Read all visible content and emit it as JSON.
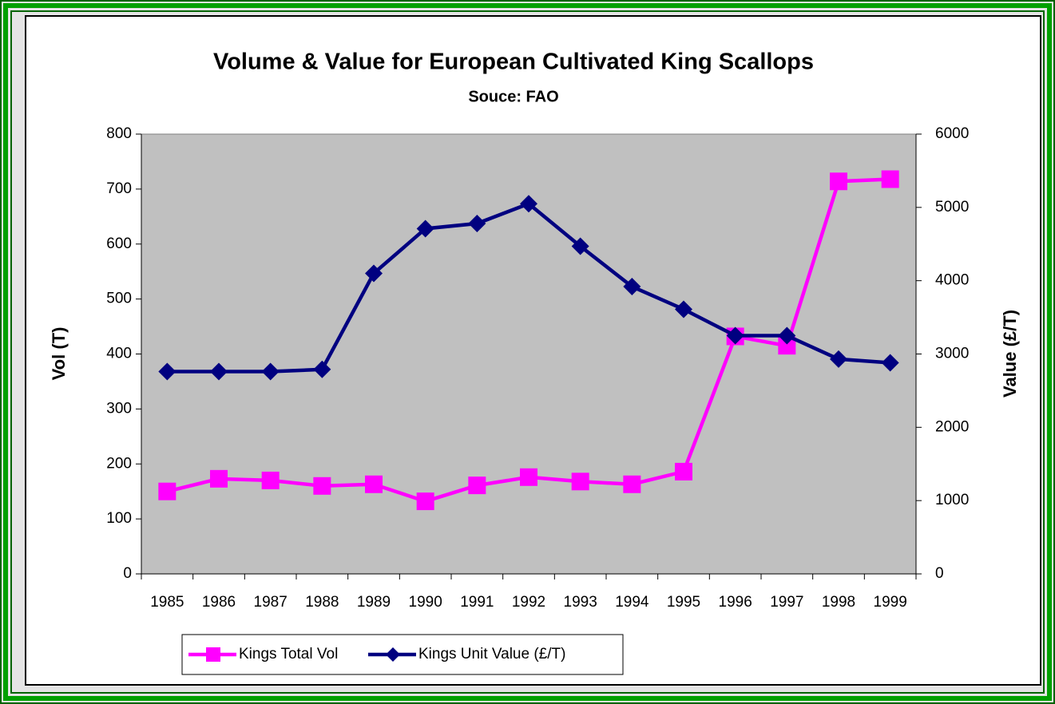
{
  "chart_data": {
    "type": "line",
    "title": "Volume & Value for European Cultivated King Scallops",
    "subtitle": "Souce: FAO",
    "y_label": "Vol (T)",
    "y2_label": "Value (£/T)",
    "categories": [
      "1985",
      "1986",
      "1987",
      "1988",
      "1989",
      "1990",
      "1991",
      "1992",
      "1993",
      "1994",
      "1995",
      "1996",
      "1997",
      "1998",
      "1999"
    ],
    "series": [
      {
        "name": "Kings Total Vol",
        "color": "#ff00ff",
        "marker": "square",
        "values": [
          150,
          173,
          170,
          160,
          163,
          132,
          161,
          176,
          168,
          163,
          186,
          432,
          415,
          714,
          718
        ]
      },
      {
        "name": "Kings Unit Value (£/T)",
        "color": "#000080",
        "marker": "diamond",
        "axis": "y2",
        "values": [
          2760,
          2760,
          2760,
          2790,
          4100,
          4710,
          4780,
          5050,
          4470,
          3920,
          3610,
          3250,
          3250,
          2930,
          2880
        ]
      }
    ],
    "ylim": [
      0,
      800
    ],
    "yticks": [
      0,
      100,
      200,
      300,
      400,
      500,
      600,
      700,
      800
    ],
    "y2lim": [
      0,
      6000
    ],
    "y2ticks": [
      0,
      1000,
      2000,
      3000,
      4000,
      5000,
      6000
    ],
    "legend": "bottom-left",
    "plot_background": "#c0c0c0"
  }
}
